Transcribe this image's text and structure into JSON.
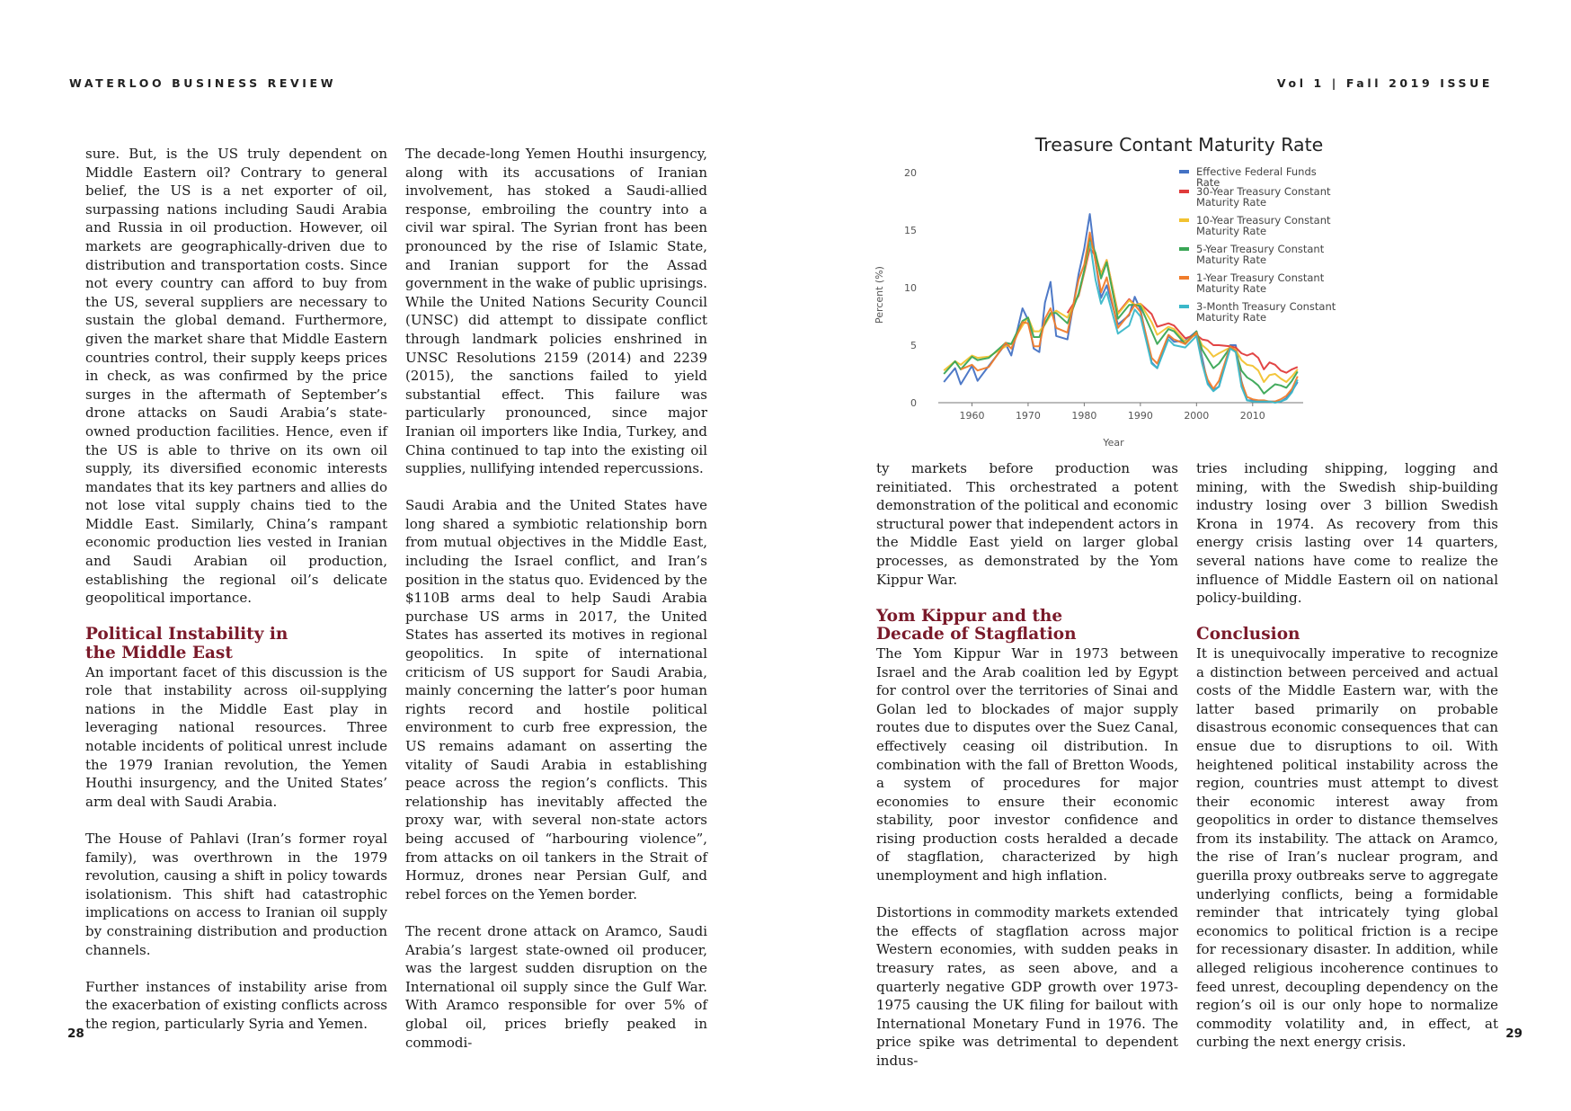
{
  "header": {
    "left": "WATERLOO BUSINESS REVIEW",
    "right": "Vol 1 | Fall 2019 ISSUE"
  },
  "pages": {
    "left_number": "28",
    "right_number": "29"
  },
  "columns": {
    "c1": {
      "p1": "sure. But, is the US truly dependent on Middle Eastern oil? Contrary to general belief, the US is a net exporter of oil, surpassing nations including Saudi Arabia and Russia in oil production. However, oil markets are geographically-driven due to distribution and transportation costs. Since not every country can afford to buy from the US, several suppliers are necessary to sustain the global demand. Furthermore, given the market share that Middle Eastern countries control, their supply keeps prices in check, as was confirmed by the price surges in the aftermath of September’s drone attacks on Saudi Arabia’s state-owned production facilities. Hence, even if the US is able to thrive on its own oil supply, its diversified economic interests mandates that its key partners and allies do not lose vital supply chains tied to the Middle East. Similarly, China’s rampant economic production lies vested in Iranian and Saudi Arabian oil production, establishing the regional oil’s delicate geopolitical importance.",
      "h1_line1": "Political Instability in",
      "h1_line2": "the Middle East",
      "p2": "An important facet of this discussion is the role that instability across oil-supplying nations in the Middle East play in leveraging national resources. Three notable incidents of political unrest include the 1979 Iranian revolution, the Yemen Houthi insurgency, and the United States’ arm deal with Saudi Arabia.",
      "p3": "The House of Pahlavi (Iran’s former royal family), was overthrown in the 1979 revolution, causing a shift in policy towards isolationism. This shift had catastrophic implications on access to Iranian oil supply by constraining distribution and production channels.",
      "p4": "Further instances of instability arise from the exacerbation of existing conflicts across the region, particularly Syria and Yemen."
    },
    "c2": {
      "p1": "The decade-long Yemen Houthi insurgency, along with its accusations of Iranian involvement, has stoked a Saudi-allied response, embroiling the country into a civil war spiral. The Syrian front has been pronounced by the rise of Islamic State, and Iranian support for the Assad government in the wake of public uprisings. While the United Nations Security Council (UNSC) did attempt to dissipate conflict through landmark policies enshrined in UNSC Resolutions 2159 (2014) and 2239 (2015), the sanctions failed to yield substantial effect. This failure was particularly pronounced, since major Iranian oil importers like India, Turkey, and China continued to tap into the existing oil supplies, nullifying intended repercussions.",
      "p2": "Saudi Arabia and the United States have long shared a symbiotic relationship born from mutual objectives in the Middle East, including the Israel conflict, and Iran’s position in the status quo. Evidenced by the $110B arms deal to help Saudi Arabia purchase US arms in 2017, the United States has asserted its motives in regional geopolitics. In spite of international criticism of US support for Saudi Arabia, mainly concerning the latter’s poor human rights record and hostile political environment to curb free expression, the US remains adamant on asserting the vitality of Saudi Arabia in establishing peace across the region’s conflicts. This relationship has inevitably affected the proxy war, with several non-state actors being accused of “harbouring violence”, from attacks on oil tankers in the Strait of Hormuz, drones near Persian Gulf, and rebel forces on the Yemen border.",
      "p3": "The recent drone attack on Aramco, Saudi Arabia’s largest state-owned oil producer, was the largest sudden disruption on the International oil supply since the Gulf War. With Aramco responsible for over 5% of global oil, prices briefly peaked in commodi-"
    },
    "c3": {
      "p1": "ty markets before production was reinitiated. This orchestrated a potent demonstration of the political and economic structural power that independent actors in the Middle East yield on larger global processes, as demonstrated by the Yom Kippur War.",
      "h1_line1": "Yom Kippur and the",
      "h1_line2": "Decade of Stagflation",
      "p2": "The Yom Kippur War in 1973 between Israel and the Arab coalition led by Egypt for control over the territories of Sinai and Golan led to blockades of major supply routes due to disputes over the Suez Canal, effectively ceasing oil distribution. In combination with the fall of Bretton Woods, a system of procedures for major economies to ensure their economic stability, poor investor confidence and rising production costs heralded a decade of stagflation, characterized by high unemployment and high inflation.",
      "p3": "Distortions in commodity markets extended the effects of stagflation across major Western economies, with sudden peaks in treasury rates, as seen above, and a quarterly negative GDP growth over 1973-1975 causing the UK filing for bailout with International Monetary Fund in 1976. The price spike was detrimental to dependent indus-"
    },
    "c4": {
      "p1": "tries including shipping, logging and mining, with the Swedish ship-building industry losing over 3 billion Swedish Krona in 1974. As recovery from this energy crisis lasting over 14 quarters, several nations have come to realize the influence of Middle Eastern oil on national policy-building.",
      "h1": "Conclusion",
      "p2": "It is unequivocally imperative to recognize a distinction between perceived and actual costs of the Middle Eastern war, with the latter based primarily on probable disastrous economic consequences that can ensue due to disruptions to oil. With heightened political instability across the region, countries must attempt to divest their economic interest away from geopolitics in order to distance themselves from its instability. The attack on Aramco, the rise of Iran’s nuclear program, and guerilla proxy outbreaks serve to aggregate underlying conflicts, being a formidable reminder that intricately tying global economics to political friction is a recipe for recessionary disaster. In addition, while alleged religious incoherence continues to feed unrest, decoupling dependency on the region’s oil is our only hope to normalize commodity volatility and, in effect, at curbing the next energy crisis."
    }
  },
  "chart_data": {
    "type": "line",
    "title": "Treasure Contant Maturity Rate",
    "xlabel": "Year",
    "ylabel": "Percent (%)",
    "xlim": [
      1954,
      2019
    ],
    "ylim": [
      0,
      20
    ],
    "xticks": [
      "1960",
      "1970",
      "1980",
      "1990",
      "2000",
      "2010"
    ],
    "yticks": [
      "0",
      "5",
      "10",
      "15",
      "20"
    ],
    "grid": false,
    "legend_position": "right",
    "x": [
      1955,
      1957,
      1958,
      1960,
      1961,
      1963,
      1966,
      1967,
      1969,
      1970,
      1971,
      1972,
      1973,
      1974,
      1975,
      1977,
      1979,
      1980,
      1981,
      1982,
      1983,
      1984,
      1986,
      1988,
      1989,
      1990,
      1992,
      1993,
      1995,
      1996,
      1998,
      2000,
      2001,
      2002,
      2003,
      2004,
      2006,
      2007,
      2008,
      2009,
      2010,
      2011,
      2012,
      2013,
      2014,
      2015,
      2016,
      2017,
      2018
    ],
    "series": [
      {
        "name": "Effective Federal Funds Rate",
        "color": "#4472c4",
        "values": [
          1.8,
          3.0,
          1.6,
          3.2,
          1.9,
          3.2,
          5.1,
          4.1,
          8.2,
          7.2,
          4.7,
          4.4,
          8.7,
          10.5,
          5.8,
          5.5,
          11.2,
          13.4,
          16.4,
          12.3,
          9.1,
          10.2,
          6.8,
          7.6,
          9.2,
          8.1,
          3.5,
          3.0,
          5.8,
          5.3,
          5.4,
          6.2,
          3.9,
          1.7,
          1.1,
          1.4,
          5.0,
          5.0,
          1.9,
          0.2,
          0.2,
          0.1,
          0.1,
          0.1,
          0.1,
          0.1,
          0.4,
          1.0,
          1.8
        ]
      },
      {
        "name": "30-Year Treasury Constant Maturity Rate",
        "color": "#e03b3b",
        "values": [
          null,
          null,
          null,
          null,
          null,
          null,
          null,
          null,
          null,
          null,
          null,
          null,
          null,
          null,
          null,
          7.8,
          9.3,
          11.3,
          13.4,
          12.8,
          11.2,
          12.4,
          7.8,
          9.0,
          8.5,
          8.6,
          7.7,
          6.6,
          6.9,
          6.7,
          5.6,
          5.9,
          5.5,
          5.4,
          5.0,
          5.0,
          4.9,
          4.8,
          4.3,
          4.1,
          4.3,
          3.9,
          2.9,
          3.5,
          3.3,
          2.8,
          2.6,
          2.9,
          3.1
        ]
      },
      {
        "name": "10-Year Treasury Constant Maturity Rate",
        "color": "#f2c230",
        "values": [
          2.8,
          3.6,
          3.3,
          4.1,
          3.9,
          4.0,
          4.9,
          5.1,
          6.7,
          7.4,
          6.2,
          6.2,
          6.8,
          7.6,
          8.0,
          7.4,
          9.4,
          11.4,
          13.9,
          13.0,
          11.1,
          12.4,
          7.7,
          8.9,
          8.5,
          8.6,
          7.0,
          5.9,
          6.6,
          6.4,
          5.3,
          6.0,
          5.0,
          4.6,
          4.0,
          4.3,
          4.8,
          4.6,
          3.7,
          3.3,
          3.2,
          2.8,
          1.8,
          2.4,
          2.5,
          2.1,
          1.8,
          2.3,
          2.9
        ]
      },
      {
        "name": "5-Year Treasury Constant Maturity Rate",
        "color": "#3aa655",
        "values": [
          2.5,
          3.6,
          2.9,
          4.0,
          3.7,
          3.9,
          5.2,
          5.1,
          7.1,
          7.4,
          5.7,
          5.7,
          6.9,
          7.8,
          7.8,
          6.9,
          9.5,
          11.5,
          14.3,
          13.0,
          10.8,
          12.2,
          7.3,
          8.5,
          8.5,
          8.4,
          6.2,
          5.1,
          6.4,
          6.2,
          5.1,
          6.2,
          4.6,
          3.8,
          3.0,
          3.4,
          4.8,
          4.4,
          2.8,
          2.2,
          1.9,
          1.5,
          0.8,
          1.2,
          1.6,
          1.5,
          1.3,
          1.9,
          2.7
        ]
      },
      {
        "name": "1-Year Treasury Constant Maturity Rate",
        "color": "#f07c2b",
        "values": [
          null,
          null,
          2.9,
          3.3,
          2.8,
          3.1,
          5.2,
          4.7,
          7.0,
          6.9,
          4.9,
          4.9,
          7.3,
          8.2,
          6.5,
          6.1,
          10.7,
          12.0,
          14.8,
          12.3,
          9.6,
          10.9,
          6.5,
          7.7,
          8.5,
          7.9,
          3.9,
          3.4,
          5.9,
          5.5,
          5.1,
          6.1,
          3.5,
          2.0,
          1.2,
          1.9,
          4.9,
          4.5,
          1.8,
          0.5,
          0.3,
          0.2,
          0.2,
          0.1,
          0.1,
          0.3,
          0.6,
          1.2,
          2.3
        ]
      },
      {
        "name": "3-Month Treasury Constant Maturity Rate",
        "color": "#3bb8c9",
        "values": [
          null,
          null,
          null,
          null,
          null,
          null,
          null,
          null,
          null,
          null,
          null,
          null,
          null,
          null,
          null,
          null,
          null,
          null,
          14.0,
          10.7,
          8.6,
          9.6,
          6.0,
          6.7,
          8.1,
          7.5,
          3.4,
          3.0,
          5.5,
          5.0,
          4.8,
          5.8,
          3.4,
          1.6,
          1.0,
          1.4,
          4.7,
          4.4,
          1.4,
          0.2,
          0.1,
          0.1,
          0.1,
          0.1,
          0.0,
          0.1,
          0.3,
          0.9,
          2.0
        ]
      }
    ]
  }
}
